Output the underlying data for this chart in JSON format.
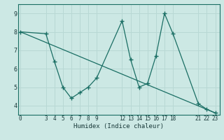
{
  "xlabel": "Humidex (Indice chaleur)",
  "ylabel": "",
  "bg_color": "#cce8e4",
  "line_color": "#1a6e64",
  "grid_color": "#b8d8d4",
  "line1_x": [
    0,
    3,
    4,
    5,
    6,
    7,
    8,
    9,
    12,
    13,
    14,
    15,
    16,
    17,
    18,
    21,
    22,
    23
  ],
  "line1_y": [
    8.0,
    7.9,
    6.4,
    5.0,
    4.4,
    4.7,
    5.0,
    5.5,
    8.6,
    6.5,
    5.0,
    5.2,
    6.7,
    9.0,
    7.9,
    4.1,
    3.8,
    3.6
  ],
  "line2_x": [
    0,
    23
  ],
  "line2_y": [
    8.0,
    3.6
  ],
  "ylim": [
    3.5,
    9.5
  ],
  "xlim": [
    -0.3,
    23.5
  ],
  "yticks": [
    4,
    5,
    6,
    7,
    8,
    9
  ],
  "xticks": [
    0,
    3,
    4,
    5,
    6,
    7,
    8,
    9,
    12,
    13,
    14,
    15,
    16,
    17,
    18,
    21,
    22,
    23
  ],
  "tick_fontsize": 5.5,
  "xlabel_fontsize": 6.5
}
